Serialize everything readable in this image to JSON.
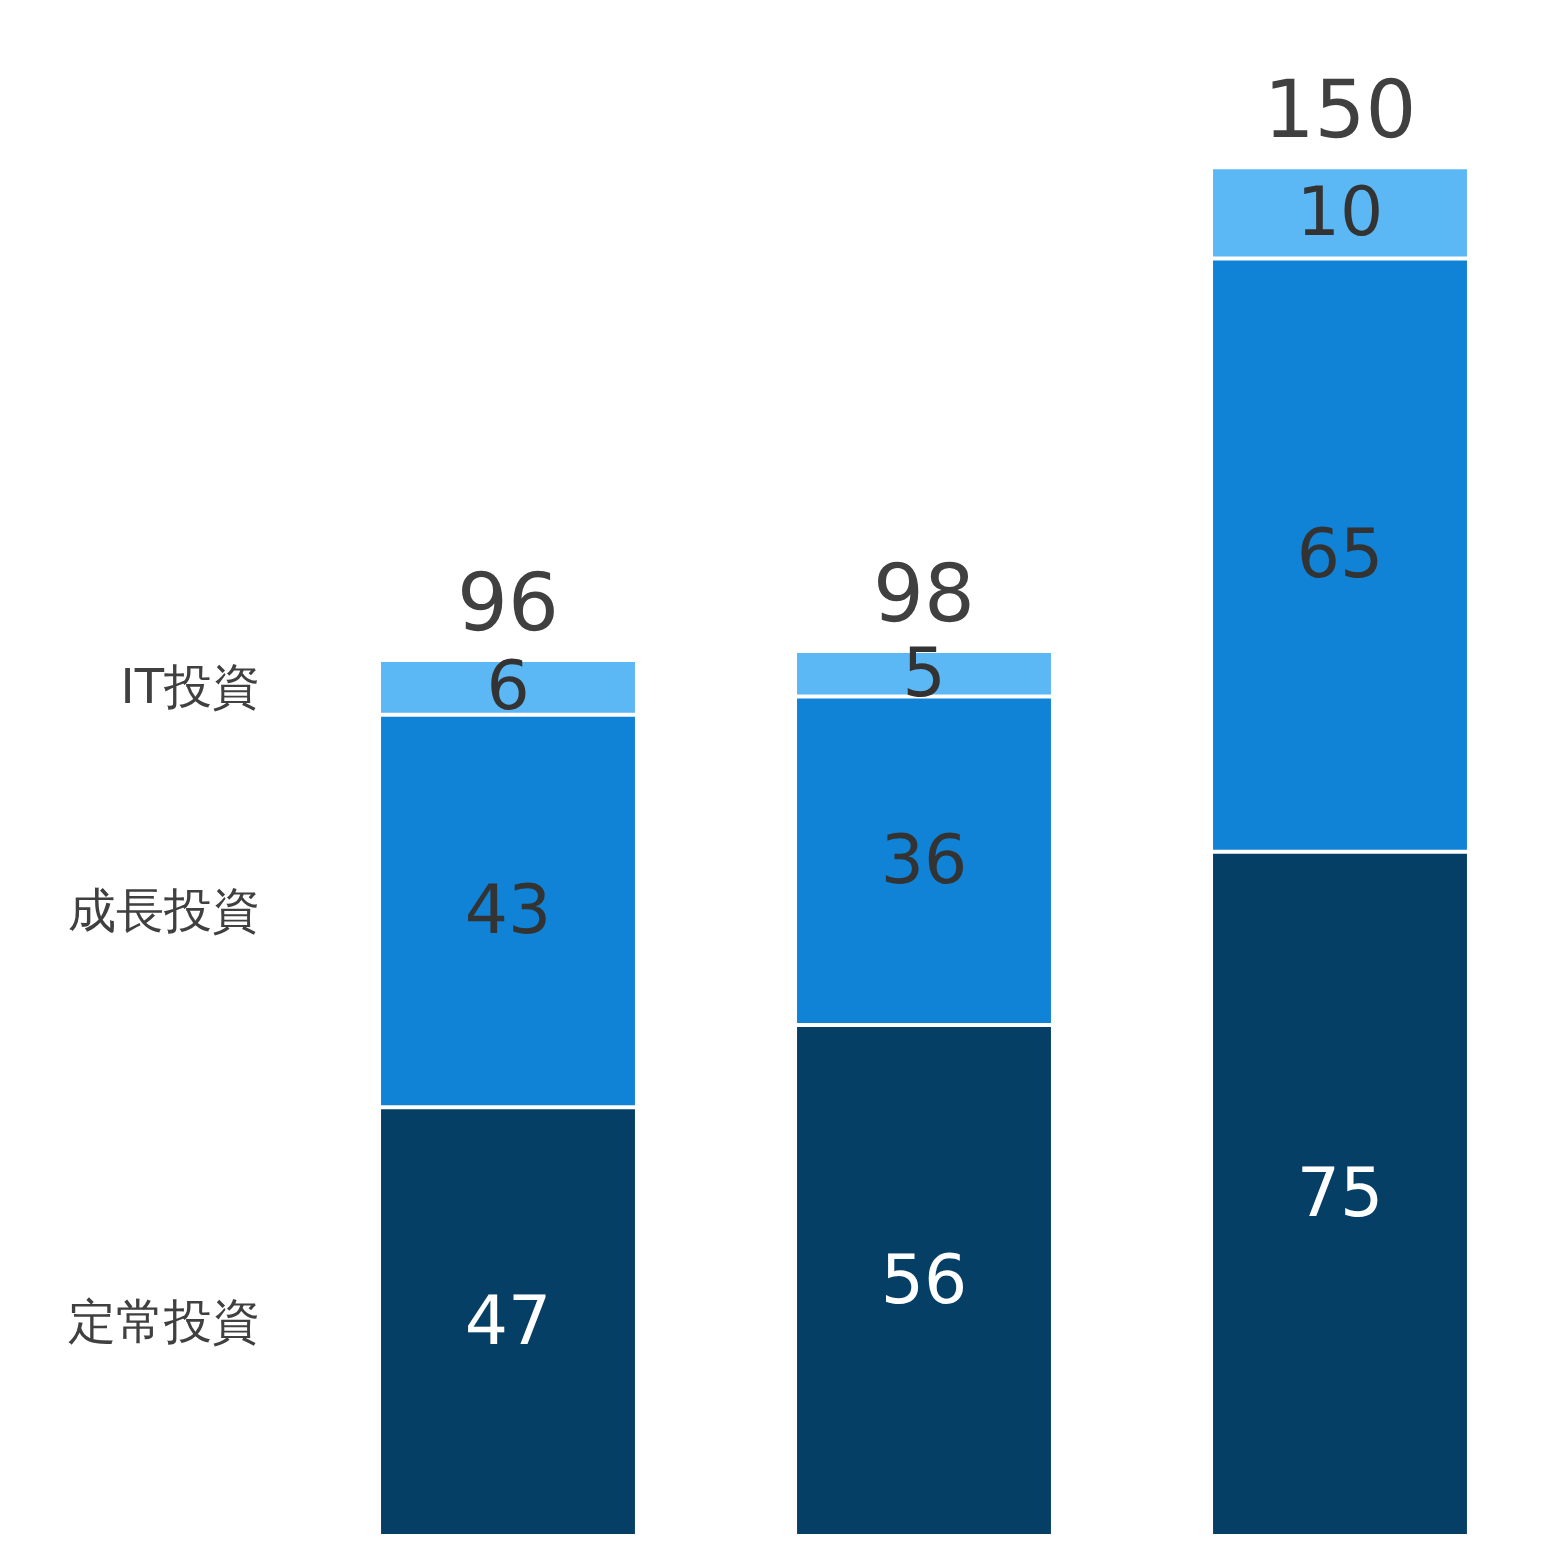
{
  "chart_data": {
    "type": "bar",
    "stacked": true,
    "data_labels": true,
    "categories": [
      null,
      null,
      null
    ],
    "series": [
      {
        "name": "定常投資",
        "color": "#063f66",
        "values": [
          47,
          56,
          75
        ]
      },
      {
        "name": "成長投資",
        "color": "#1083d6",
        "values": [
          43,
          36,
          65
        ]
      },
      {
        "name": "IT投資",
        "color": "#5bb8f5",
        "values": [
          6,
          5,
          10
        ]
      }
    ],
    "totals": [
      "96",
      "98",
      "150"
    ],
    "legend": false,
    "grid": false
  }
}
